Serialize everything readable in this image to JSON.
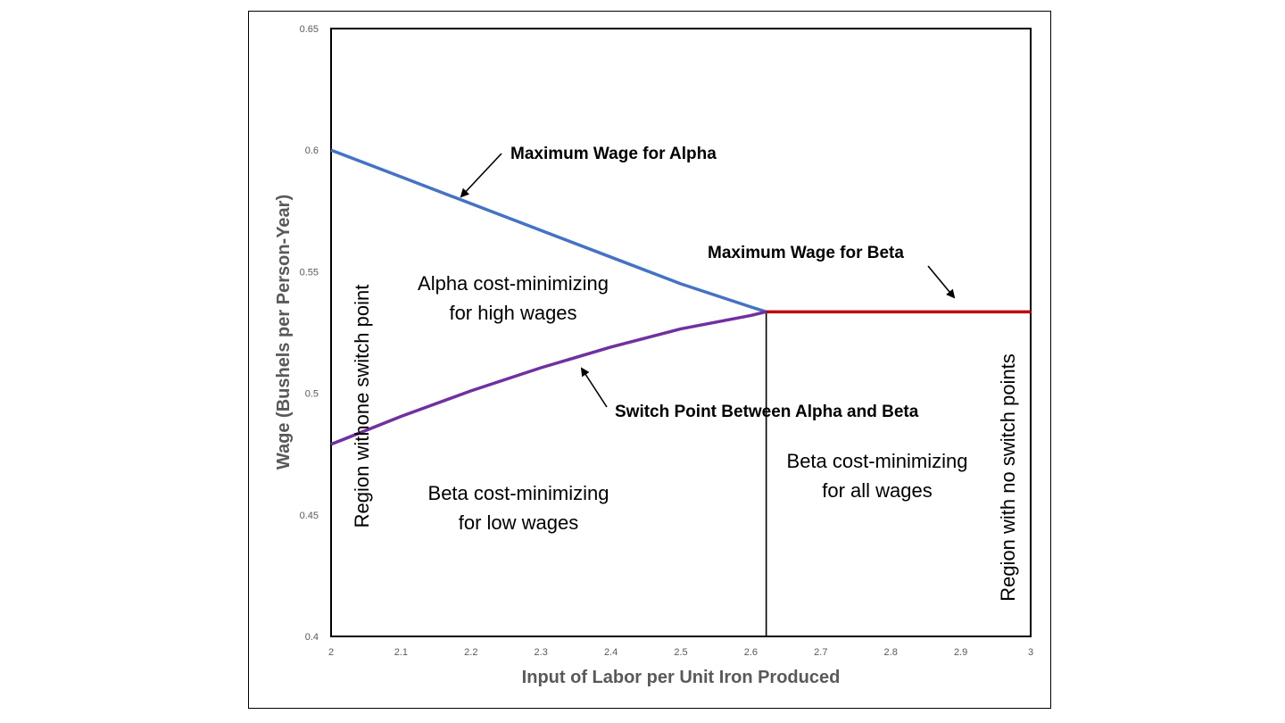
{
  "chart_data": {
    "type": "line",
    "title": "",
    "xlabel": "Input of Labor per Unit Iron Produced",
    "ylabel": "Wage (Bushels per Person-Year)",
    "xlim": [
      2,
      3
    ],
    "ylim": [
      0.4,
      0.65
    ],
    "x_ticks": [
      "2",
      "2.1",
      "2.2",
      "2.3",
      "2.4",
      "2.5",
      "2.6",
      "2.7",
      "2.8",
      "2.9",
      "3"
    ],
    "y_ticks": [
      "0.4",
      "0.45",
      "0.5",
      "0.55",
      "0.6",
      "0.65"
    ],
    "grid": false,
    "legend": "none",
    "series": [
      {
        "color": "#4472C4",
        "x": [
          2.0,
          2.1,
          2.2,
          2.3,
          2.4,
          2.5,
          2.6,
          2.622
        ],
        "y": [
          0.6,
          0.589,
          0.578,
          0.567,
          0.556,
          0.545,
          0.5355,
          0.5335
        ]
      },
      {
        "color": "#7030A0",
        "x": [
          2.0,
          2.1,
          2.2,
          2.3,
          2.4,
          2.5,
          2.6,
          2.622
        ],
        "y": [
          0.479,
          0.4905,
          0.501,
          0.5105,
          0.519,
          0.5265,
          0.532,
          0.5335
        ]
      },
      {
        "color": "#C00000",
        "x": [
          2.622,
          2.7,
          2.8,
          2.9,
          3.0
        ],
        "y": [
          0.5335,
          0.5335,
          0.5335,
          0.5335,
          0.5335
        ]
      }
    ],
    "vertical_line": {
      "x": 2.622,
      "color": "#000000"
    },
    "annotations": {
      "max_wage_alpha": "Maximum Wage for Alpha",
      "max_wage_beta": "Maximum Wage for Beta",
      "switch_point": "Switch Point Between Alpha and Beta",
      "alpha_region_line1": "Alpha cost-minimizing",
      "alpha_region_line2": "for high wages",
      "beta_low_line1": "Beta cost-minimizing",
      "beta_low_line2": "for low wages",
      "beta_all_line1": "Beta cost-minimizing",
      "beta_all_line2": "for all wages",
      "region_one_switch": "Region withone switch point",
      "region_no_switch": "Region with no switch points"
    }
  }
}
